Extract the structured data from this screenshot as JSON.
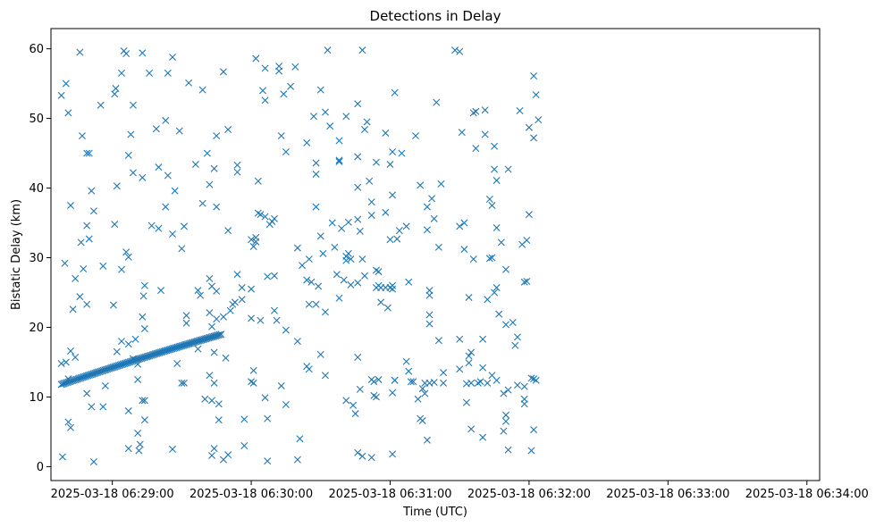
{
  "chart_data": {
    "type": "scatter",
    "title": "Detections in Delay",
    "xlabel": "Time (UTC)",
    "ylabel": "Bistatic Delay (km)",
    "marker": "x",
    "color": "#1f77b4",
    "xlim_seconds_after_0628": [
      33.5,
      365.5
    ],
    "ylim": [
      -2.0,
      62.9
    ],
    "x_tick_labels": [
      "2025-03-18 06:29:00",
      "2025-03-18 06:30:00",
      "2025-03-18 06:31:00",
      "2025-03-18 06:32:00",
      "2025-03-18 06:33:00",
      "2025-03-18 06:34:00"
    ],
    "x_tick_seconds": [
      60,
      120,
      180,
      240,
      300,
      360
    ],
    "y_ticks": [
      0,
      10,
      20,
      30,
      40,
      50,
      60
    ],
    "track": {
      "description": "dense linear detection track",
      "t_start": 38,
      "t_end": 107,
      "d_start": 11.8,
      "d_end": 19.0,
      "count": 115
    },
    "points": [
      [
        38,
        53.3
      ],
      [
        40,
        55.0
      ],
      [
        41,
        50.8
      ],
      [
        39.5,
        29.2
      ],
      [
        42,
        37.5
      ],
      [
        43,
        22.6
      ],
      [
        44,
        27.0
      ],
      [
        46,
        59.5
      ],
      [
        47,
        47.5
      ],
      [
        46.5,
        32.2
      ],
      [
        47.5,
        28.4
      ],
      [
        46,
        24.4
      ],
      [
        49,
        45.0
      ],
      [
        50,
        45.0
      ],
      [
        49,
        34.6
      ],
      [
        50,
        32.7
      ],
      [
        51,
        39.6
      ],
      [
        52,
        36.7
      ],
      [
        49,
        23.3
      ],
      [
        49,
        10.5
      ],
      [
        51,
        8.6
      ],
      [
        52,
        0.7
      ],
      [
        55,
        51.9
      ],
      [
        56,
        28.8
      ],
      [
        56,
        8.6
      ],
      [
        57,
        11.6
      ],
      [
        40,
        15.0
      ],
      [
        42,
        16.6
      ],
      [
        44,
        15.7
      ],
      [
        41,
        12.6
      ],
      [
        41,
        6.4
      ],
      [
        42,
        5.6
      ],
      [
        38,
        14.8
      ],
      [
        38.5,
        1.4
      ],
      [
        61,
        53.5
      ],
      [
        61.5,
        54.3
      ],
      [
        62,
        40.3
      ],
      [
        61,
        34.8
      ],
      [
        60.5,
        23.2
      ],
      [
        62,
        16.5
      ],
      [
        64,
        56.5
      ],
      [
        65,
        59.7
      ],
      [
        66,
        59.3
      ],
      [
        64,
        28.3
      ],
      [
        64,
        18.0
      ],
      [
        67,
        44.7
      ],
      [
        67,
        17.6
      ],
      [
        66,
        30.8
      ],
      [
        67,
        30.1
      ],
      [
        68,
        47.7
      ],
      [
        69,
        51.9
      ],
      [
        69,
        42.2
      ],
      [
        71,
        14.7
      ],
      [
        70,
        18.3
      ],
      [
        69,
        15.5
      ],
      [
        71,
        12.5
      ],
      [
        67,
        8.0
      ],
      [
        67,
        2.6
      ],
      [
        71,
        4.8
      ],
      [
        71.5,
        2.3
      ],
      [
        73,
        59.4
      ],
      [
        73,
        41.5
      ],
      [
        73,
        21.5
      ],
      [
        73.5,
        24.5
      ],
      [
        74,
        26.0
      ],
      [
        74,
        19.8
      ],
      [
        73,
        9.5
      ],
      [
        74,
        9.5
      ],
      [
        74,
        6.7
      ],
      [
        72,
        3.2
      ],
      [
        76,
        56.5
      ],
      [
        77,
        34.6
      ],
      [
        79,
        48.5
      ],
      [
        80,
        43.0
      ],
      [
        80,
        34.2
      ],
      [
        81,
        25.3
      ],
      [
        83,
        49.7
      ],
      [
        83,
        37.3
      ],
      [
        84,
        56.5
      ],
      [
        84,
        41.8
      ],
      [
        86,
        58.8
      ],
      [
        86,
        33.4
      ],
      [
        87,
        39.6
      ],
      [
        88,
        14.8
      ],
      [
        86,
        2.5
      ],
      [
        89,
        48.2
      ],
      [
        90,
        31.3
      ],
      [
        90,
        12.0
      ],
      [
        91,
        34.5
      ],
      [
        92,
        21.7
      ],
      [
        92,
        20.6
      ],
      [
        91,
        12.0
      ],
      [
        93,
        55.1
      ],
      [
        96,
        43.4
      ],
      [
        97,
        25.3
      ],
      [
        97,
        16.9
      ],
      [
        98,
        24.6
      ],
      [
        99,
        54.1
      ],
      [
        99,
        37.8
      ],
      [
        100,
        9.7
      ],
      [
        101,
        45.0
      ],
      [
        102,
        40.5
      ],
      [
        102,
        27.0
      ],
      [
        102,
        22.1
      ],
      [
        102,
        13.1
      ],
      [
        103,
        25.9
      ],
      [
        103,
        20.1
      ],
      [
        103,
        9.5
      ],
      [
        104,
        42.8
      ],
      [
        104,
        16.4
      ],
      [
        104,
        12.0
      ],
      [
        103,
        1.6
      ],
      [
        104,
        2.6
      ],
      [
        105,
        47.5
      ],
      [
        105,
        37.3
      ],
      [
        105,
        25.2
      ],
      [
        105,
        21.2
      ],
      [
        106,
        9.0
      ],
      [
        106,
        6.7
      ],
      [
        108,
        56.7
      ],
      [
        108,
        21.5
      ],
      [
        109,
        15.6
      ],
      [
        108,
        1.0
      ],
      [
        110,
        48.4
      ],
      [
        110,
        33.9
      ],
      [
        111,
        22.4
      ],
      [
        110,
        1.7
      ],
      [
        112,
        23.3
      ],
      [
        113,
        23.6
      ],
      [
        114,
        42.3
      ],
      [
        114,
        43.3
      ],
      [
        114,
        27.6
      ],
      [
        116,
        25.7
      ],
      [
        116,
        24.0
      ],
      [
        117,
        6.8
      ],
      [
        117,
        3.0
      ],
      [
        120,
        32.6
      ],
      [
        120,
        25.5
      ],
      [
        120,
        21.3
      ],
      [
        121,
        13.8
      ],
      [
        120,
        12.2
      ],
      [
        121,
        31.6
      ],
      [
        122,
        58.6
      ],
      [
        123,
        41.0
      ],
      [
        123,
        36.4
      ],
      [
        122,
        32.3
      ],
      [
        122,
        32.9
      ],
      [
        121,
        12.0
      ],
      [
        125,
        54.0
      ],
      [
        126,
        52.6
      ],
      [
        126,
        57.2
      ],
      [
        124,
        36.2
      ],
      [
        124,
        21.0
      ],
      [
        126,
        35.9
      ],
      [
        126,
        9.9
      ],
      [
        127,
        27.3
      ],
      [
        127,
        6.9
      ],
      [
        127,
        0.8
      ],
      [
        128,
        34.8
      ],
      [
        129,
        35.2
      ],
      [
        130,
        35.6
      ],
      [
        130,
        27.4
      ],
      [
        130,
        22.4
      ],
      [
        131,
        21.0
      ],
      [
        132,
        57.5
      ],
      [
        132,
        56.8
      ],
      [
        133,
        47.5
      ],
      [
        134,
        53.5
      ],
      [
        133,
        11.6
      ],
      [
        135,
        45.2
      ],
      [
        135,
        19.6
      ],
      [
        135,
        8.9
      ],
      [
        137,
        54.6
      ],
      [
        139,
        57.4
      ],
      [
        140,
        31.4
      ],
      [
        140,
        18.0
      ],
      [
        140,
        1.0
      ],
      [
        141,
        4.0
      ],
      [
        142,
        28.9
      ],
      [
        144,
        46.5
      ],
      [
        144,
        26.8
      ],
      [
        145,
        29.8
      ],
      [
        144,
        14.4
      ],
      [
        145,
        14.0
      ],
      [
        145,
        23.3
      ],
      [
        146,
        26.5
      ],
      [
        147,
        50.3
      ],
      [
        148,
        43.6
      ],
      [
        148,
        42.0
      ],
      [
        148,
        37.3
      ],
      [
        148,
        23.3
      ],
      [
        149,
        25.9
      ],
      [
        150,
        54.1
      ],
      [
        150,
        33.1
      ],
      [
        150,
        16.1
      ],
      [
        151,
        30.6
      ],
      [
        152,
        50.9
      ],
      [
        152,
        13.1
      ],
      [
        153,
        59.8
      ],
      [
        152,
        22.2
      ],
      [
        154,
        48.9
      ],
      [
        155,
        35.0
      ],
      [
        156,
        31.5
      ],
      [
        157,
        27.6
      ],
      [
        158,
        46.8
      ],
      [
        158,
        44.0
      ],
      [
        158,
        43.8
      ],
      [
        159,
        34.2
      ],
      [
        158,
        24.2
      ],
      [
        160,
        26.8
      ],
      [
        161,
        50.3
      ],
      [
        161,
        30.2
      ],
      [
        161,
        29.6
      ],
      [
        161,
        9.5
      ],
      [
        162,
        35.1
      ],
      [
        162,
        30.6
      ],
      [
        163,
        26.1
      ],
      [
        163,
        29.8
      ],
      [
        164,
        8.8
      ],
      [
        165,
        7.6
      ],
      [
        166,
        52.1
      ],
      [
        166,
        44.5
      ],
      [
        166,
        40.1
      ],
      [
        166,
        35.5
      ],
      [
        166,
        26.4
      ],
      [
        166,
        15.7
      ],
      [
        167,
        11.1
      ],
      [
        166,
        2.0
      ],
      [
        168,
        59.8
      ],
      [
        167,
        33.8
      ],
      [
        168,
        29.8
      ],
      [
        168,
        1.5
      ],
      [
        169,
        48.4
      ],
      [
        170,
        49.5
      ],
      [
        169,
        27.4
      ],
      [
        171,
        41.0
      ],
      [
        172,
        38.0
      ],
      [
        172,
        36.1
      ],
      [
        172,
        12.5
      ],
      [
        172,
        1.3
      ],
      [
        173,
        12.2
      ],
      [
        174,
        43.7
      ],
      [
        174,
        28.2
      ],
      [
        174,
        25.7
      ],
      [
        175,
        26.0
      ],
      [
        175,
        28.0
      ],
      [
        175,
        12.5
      ],
      [
        173,
        10.2
      ],
      [
        174,
        10.0
      ],
      [
        176,
        25.7
      ],
      [
        176,
        23.6
      ],
      [
        178,
        47.9
      ],
      [
        178,
        36.5
      ],
      [
        178,
        25.7
      ],
      [
        179,
        22.8
      ],
      [
        180,
        25.7
      ],
      [
        180,
        32.6
      ],
      [
        180,
        43.4
      ],
      [
        181,
        45.2
      ],
      [
        181,
        39.0
      ],
      [
        181,
        26.0
      ],
      [
        181,
        25.5
      ],
      [
        182,
        12.4
      ],
      [
        181,
        10.6
      ],
      [
        181,
        1.8
      ],
      [
        182,
        53.7
      ],
      [
        182,
        12.4
      ],
      [
        183,
        32.7
      ],
      [
        184,
        33.9
      ],
      [
        185,
        45.0
      ],
      [
        187,
        34.5
      ],
      [
        188,
        26.5
      ],
      [
        187,
        15.1
      ],
      [
        188,
        13.7
      ],
      [
        189,
        12.2
      ],
      [
        190,
        12.2
      ],
      [
        191,
        47.5
      ],
      [
        192,
        9.7
      ],
      [
        193,
        40.4
      ],
      [
        193,
        6.9
      ],
      [
        194,
        6.6
      ],
      [
        195,
        12.0
      ],
      [
        194,
        11.2
      ],
      [
        195,
        10.5
      ],
      [
        196,
        37.3
      ],
      [
        196,
        34.0
      ],
      [
        197,
        25.3
      ],
      [
        197,
        24.6
      ],
      [
        197,
        21.8
      ],
      [
        197,
        20.5
      ],
      [
        197,
        12.0
      ],
      [
        198,
        38.5
      ],
      [
        199,
        35.6
      ],
      [
        199,
        12.1
      ],
      [
        200,
        52.3
      ],
      [
        201,
        31.5
      ],
      [
        201,
        18.1
      ],
      [
        202,
        40.6
      ],
      [
        203,
        12.0
      ],
      [
        203,
        13.5
      ],
      [
        196,
        3.8
      ],
      [
        208,
        59.8
      ],
      [
        210,
        59.6
      ],
      [
        210,
        18.3
      ],
      [
        210,
        14.0
      ],
      [
        210,
        34.5
      ],
      [
        211,
        48.0
      ],
      [
        212,
        35.0
      ],
      [
        212,
        31.2
      ],
      [
        213,
        11.9
      ],
      [
        213,
        9.2
      ],
      [
        214,
        24.3
      ],
      [
        214,
        15.9
      ],
      [
        214,
        14.9
      ],
      [
        215,
        16.4
      ],
      [
        215,
        12.0
      ],
      [
        215,
        5.4
      ],
      [
        216,
        29.8
      ],
      [
        216,
        50.8
      ],
      [
        217,
        51.0
      ],
      [
        217,
        45.7
      ],
      [
        218,
        12.0
      ],
      [
        219,
        12.2
      ],
      [
        220,
        18.3
      ],
      [
        220,
        14.2
      ],
      [
        220,
        4.2
      ],
      [
        221,
        47.7
      ],
      [
        221,
        51.2
      ],
      [
        222,
        24.0
      ],
      [
        222,
        12.0
      ],
      [
        223,
        29.9
      ],
      [
        223,
        38.4
      ],
      [
        224,
        37.5
      ],
      [
        224,
        30.0
      ],
      [
        224,
        13.1
      ],
      [
        225,
        46.0
      ],
      [
        225,
        42.7
      ],
      [
        226,
        41.1
      ],
      [
        226,
        34.3
      ],
      [
        225,
        25.0
      ],
      [
        226,
        25.7
      ],
      [
        226,
        12.4
      ],
      [
        227,
        21.9
      ],
      [
        228,
        32.2
      ],
      [
        229,
        5.1
      ],
      [
        229,
        10.5
      ],
      [
        230,
        28.3
      ],
      [
        230,
        20.4
      ],
      [
        230,
        7.4
      ],
      [
        230,
        6.5
      ],
      [
        231,
        11.0
      ],
      [
        231,
        2.4
      ],
      [
        231,
        42.7
      ],
      [
        233,
        20.7
      ],
      [
        234,
        17.4
      ],
      [
        235,
        18.6
      ],
      [
        235,
        11.7
      ],
      [
        236,
        51.1
      ],
      [
        237,
        31.9
      ],
      [
        238,
        26.5
      ],
      [
        238,
        11.5
      ],
      [
        238,
        9.7
      ],
      [
        238,
        9.0
      ],
      [
        239,
        32.5
      ],
      [
        239,
        26.6
      ],
      [
        240,
        48.7
      ],
      [
        240,
        36.2
      ],
      [
        241,
        2.3
      ],
      [
        241,
        12.7
      ],
      [
        242,
        12.6
      ],
      [
        242,
        56.1
      ],
      [
        242,
        47.2
      ],
      [
        243,
        53.4
      ],
      [
        243,
        12.4
      ],
      [
        244,
        49.8
      ],
      [
        242,
        5.3
      ]
    ]
  }
}
